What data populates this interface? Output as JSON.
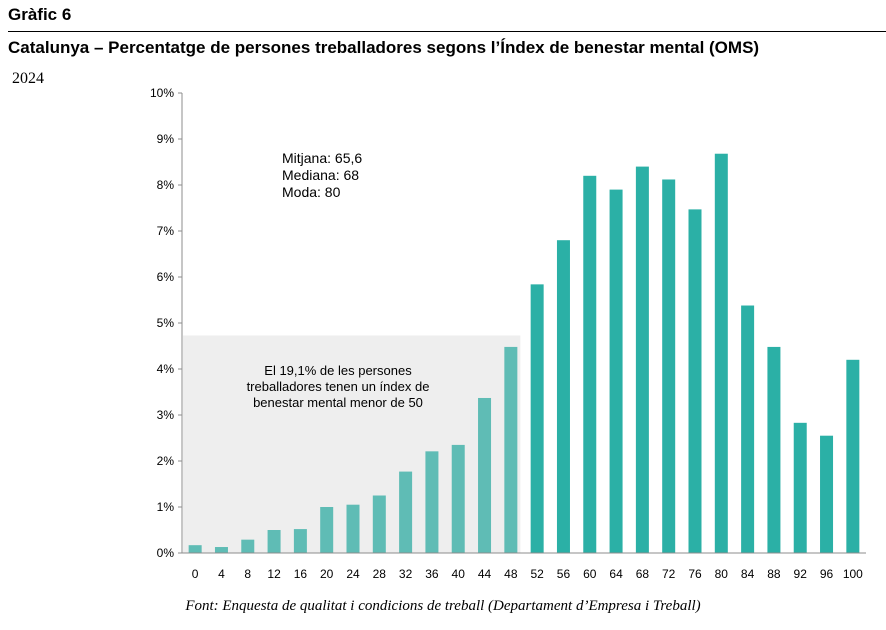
{
  "header": {
    "graphic_label": "Gràfic 6",
    "title": "Catalunya – Percentatge de persones treballadores segons l’Índex de benestar mental (OMS)",
    "year": "2024"
  },
  "source": "Font: Enquesta de qualitat i condicions de treball (Departament d’Empresa i Treball)",
  "colors": {
    "bar_main": "#2bb0a6",
    "bar_low": "#5fbcb5",
    "highlight_box": "#eeeeee"
  },
  "chart_data": {
    "type": "bar",
    "categories": [
      "0",
      "4",
      "8",
      "12",
      "16",
      "20",
      "24",
      "28",
      "32",
      "36",
      "40",
      "44",
      "48",
      "52",
      "56",
      "60",
      "64",
      "68",
      "72",
      "76",
      "80",
      "84",
      "88",
      "92",
      "96",
      "100"
    ],
    "values": [
      0.17,
      0.13,
      0.29,
      0.5,
      0.52,
      1.0,
      1.05,
      1.25,
      1.77,
      2.21,
      2.35,
      3.37,
      4.48,
      5.84,
      6.8,
      8.2,
      7.9,
      8.4,
      8.12,
      7.47,
      8.68,
      5.38,
      4.48,
      2.83,
      2.55,
      4.2
    ],
    "ylim": [
      0,
      10
    ],
    "yticks": [
      "0%",
      "1%",
      "2%",
      "3%",
      "4%",
      "5%",
      "6%",
      "7%",
      "8%",
      "9%",
      "10%"
    ],
    "xlabel": "",
    "ylabel": "",
    "grid": false,
    "highlight_region": {
      "from_category": "0",
      "to_category": "48",
      "top_value": 4.73
    },
    "stats": [
      "Mitjana: 65,6",
      "Mediana: 68",
      "Moda: 80"
    ],
    "annotation": "El 19,1% de les persones treballadores tenen un índex de benestar mental menor de 50"
  }
}
